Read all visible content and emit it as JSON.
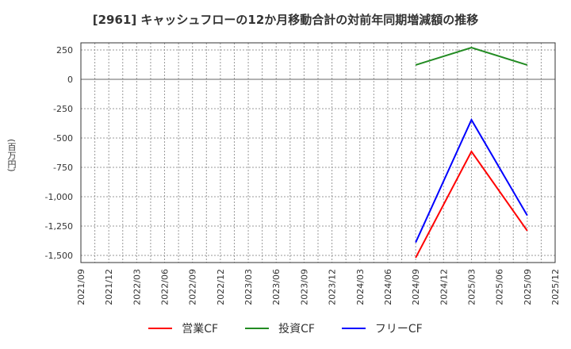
{
  "title": "[2961]  キャッシュフローの12か月移動合計の対前年同期増減額の推移",
  "y_axis_label": "(百万円)",
  "legend": [
    {
      "label": "営業CF",
      "color": "#ff0000"
    },
    {
      "label": "投資CF",
      "color": "#228b22"
    },
    {
      "label": "フリーCF",
      "color": "#0000ff"
    }
  ],
  "chart_data": {
    "type": "line",
    "title": "[2961]  キャッシュフローの12か月移動合計の対前年同期増減額の推移",
    "xlabel": "",
    "ylabel": "(百万円)",
    "ylim": [
      -1560,
      320
    ],
    "yticks": [
      250,
      0,
      -250,
      -500,
      -750,
      -1000,
      -1250,
      -1500
    ],
    "ytick_labels": [
      "250",
      "0",
      "-250",
      "-500",
      "-750",
      "-1,000",
      "-1,250",
      "-1,500"
    ],
    "categories": [
      "2021/09",
      "2021/12",
      "2022/03",
      "2022/06",
      "2022/09",
      "2022/12",
      "2023/03",
      "2023/06",
      "2023/09",
      "2023/12",
      "2024/03",
      "2024/06",
      "2024/09",
      "2024/12",
      "2025/03",
      "2025/06",
      "2025/09",
      "2025/12"
    ],
    "grid": true,
    "legend_position": "bottom",
    "series": [
      {
        "name": "営業CF",
        "color": "#ff0000",
        "points": [
          [
            "2024/09",
            -1520
          ],
          [
            "2025/03",
            -615
          ],
          [
            "2025/09",
            -1290
          ]
        ]
      },
      {
        "name": "投資CF",
        "color": "#228b22",
        "points": [
          [
            "2024/09",
            122
          ],
          [
            "2025/03",
            270
          ],
          [
            "2025/09",
            122
          ]
        ]
      },
      {
        "name": "フリーCF",
        "color": "#0000ff",
        "points": [
          [
            "2024/09",
            -1390
          ],
          [
            "2025/03",
            -345
          ],
          [
            "2025/09",
            -1160
          ]
        ]
      }
    ]
  }
}
